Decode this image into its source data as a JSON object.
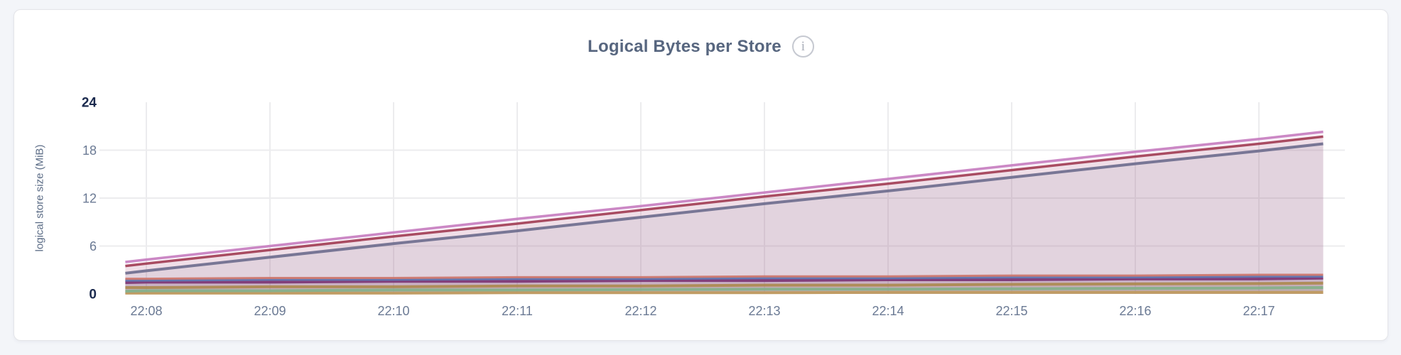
{
  "header": {
    "title": "Logical Bytes per Store",
    "info_icon_glyph": "i"
  },
  "colors": {
    "page_bg": "#f3f5f9",
    "card_bg": "#ffffff",
    "card_border": "#e4e5e9",
    "grid": "#ececee",
    "tick_label": "#6b7a94",
    "tick_label_emphasis": "#1b2a4e",
    "axis_title": "#5b6c86",
    "chart_title": "#57667f"
  },
  "chart_data": {
    "type": "area",
    "title": "Logical Bytes per Store",
    "xlabel": "",
    "ylabel": "logical store size (MiB)",
    "ylim": [
      0,
      24
    ],
    "y_ticks": [
      0,
      6,
      12,
      18,
      24
    ],
    "y_ticks_bold": [
      0,
      24
    ],
    "h_gridlines": [
      6,
      12,
      18
    ],
    "grid": true,
    "legend": "none",
    "categories": [
      "22:08",
      "22:09",
      "22:10",
      "22:11",
      "22:12",
      "22:13",
      "22:14",
      "22:15",
      "22:16",
      "22:17"
    ],
    "x_domain_ticks": [
      -0.17,
      9.52
    ],
    "fill_opacity": 0.1,
    "series": [
      {
        "id": "series-1",
        "color": "#c77ec0",
        "width": 3.5,
        "pre": 4.0,
        "values": [
          4.3,
          6.0,
          7.7,
          9.4,
          11.0,
          12.7,
          14.4,
          16.1,
          17.8,
          19.4
        ],
        "post": 20.3
      },
      {
        "id": "series-2",
        "color": "#a23e55",
        "width": 3.5,
        "pre": 3.5,
        "values": [
          3.8,
          5.5,
          7.2,
          8.8,
          10.5,
          12.2,
          13.8,
          15.5,
          17.2,
          18.8
        ],
        "post": 19.7
      },
      {
        "id": "series-3",
        "color": "#6f6e8e",
        "width": 4,
        "pre": 2.6,
        "values": [
          2.9,
          4.6,
          6.3,
          7.9,
          9.6,
          11.3,
          12.9,
          14.6,
          16.3,
          17.9
        ],
        "post": 18.8
      },
      {
        "id": "series-4",
        "color": "#cd766d",
        "width": 3,
        "pre": 1.9,
        "values": [
          1.9,
          2.0,
          2.0,
          2.1,
          2.1,
          2.2,
          2.2,
          2.3,
          2.3,
          2.4
        ],
        "post": 2.4
      },
      {
        "id": "series-5",
        "color": "#5d74b1",
        "width": 3.5,
        "pre": 1.7,
        "values": [
          1.7,
          1.8,
          1.8,
          1.9,
          1.9,
          2.0,
          2.0,
          2.1,
          2.1,
          2.2
        ],
        "post": 2.2
      },
      {
        "id": "series-6",
        "color": "#7c3574",
        "width": 4.5,
        "pre": 1.45,
        "values": [
          1.5,
          1.5,
          1.6,
          1.6,
          1.7,
          1.7,
          1.8,
          1.8,
          1.9,
          1.9
        ],
        "post": 2.0
      },
      {
        "id": "series-7",
        "color": "#ad8a50",
        "width": 4,
        "pre": 0.8,
        "values": [
          0.8,
          0.9,
          0.9,
          1.0,
          1.0,
          1.1,
          1.1,
          1.2,
          1.25,
          1.3
        ],
        "post": 1.35
      },
      {
        "id": "series-8",
        "color": "#84b08a",
        "width": 4,
        "pre": 0.35,
        "values": [
          0.4,
          0.4,
          0.5,
          0.5,
          0.55,
          0.6,
          0.6,
          0.65,
          0.7,
          0.75
        ],
        "post": 0.8
      },
      {
        "id": "series-9",
        "color": "#c09a5e",
        "width": 4,
        "pre": 0.1,
        "values": [
          0.1,
          0.1,
          0.1,
          0.15,
          0.15,
          0.15,
          0.2,
          0.2,
          0.2,
          0.2
        ],
        "post": 0.2
      }
    ]
  }
}
